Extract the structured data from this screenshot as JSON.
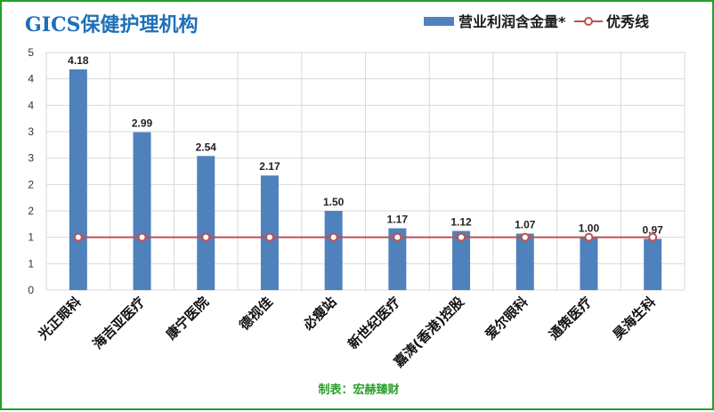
{
  "chart_data": {
    "type": "bar",
    "title": "GICS保健护理机构",
    "categories": [
      "光正眼科",
      "海吉亚医疗",
      "康宁医院",
      "德视佳",
      "必瘦站",
      "新世纪医疗",
      "嘉涛(香港)控股",
      "爱尔眼科",
      "通策医疗",
      "昊海生科"
    ],
    "series": [
      {
        "name": "营业利润含金量*",
        "type": "bar",
        "values": [
          4.18,
          2.99,
          2.54,
          2.17,
          1.5,
          1.17,
          1.12,
          1.07,
          1.0,
          0.97
        ],
        "color": "#4f81bd"
      },
      {
        "name": "优秀线",
        "type": "line",
        "values": [
          1,
          1,
          1,
          1,
          1,
          1,
          1,
          1,
          1,
          1
        ],
        "color": "#c0504d"
      }
    ],
    "data_labels": [
      "4.18",
      "2.99",
      "2.54",
      "2.17",
      "1.50",
      "1.17",
      "1.12",
      "1.07",
      "1.00",
      "0.97"
    ],
    "ytick_labels": [
      "0",
      "1",
      "1",
      "2",
      "2",
      "3",
      "3",
      "4",
      "4",
      "5"
    ],
    "ylim": [
      0,
      4.5
    ],
    "grid": true,
    "legend_position": "top-right",
    "credit": "制表：宏赫臻财"
  }
}
